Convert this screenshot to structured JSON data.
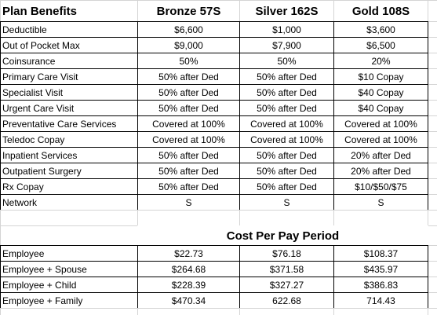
{
  "plan_table": {
    "headers": [
      "Plan Benefits",
      "Bronze 57S",
      "Silver 162S",
      "Gold 108S"
    ],
    "rows": [
      [
        "Deductible",
        "$6,600",
        "$1,000",
        "$3,600"
      ],
      [
        "Out of Pocket Max",
        "$9,000",
        "$7,900",
        "$6,500"
      ],
      [
        "Coinsurance",
        "50%",
        "50%",
        "20%"
      ],
      [
        "Primary Care Visit",
        "50% after Ded",
        "50% after Ded",
        "$10 Copay"
      ],
      [
        "Specialist Visit",
        "50% after Ded",
        "50% after Ded",
        "$40 Copay"
      ],
      [
        "Urgent Care Visit",
        "50% after Ded",
        "50% after Ded",
        "$40 Copay"
      ],
      [
        "Preventative Care Services",
        "Covered at 100%",
        "Covered at 100%",
        "Covered at 100%"
      ],
      [
        "Teledoc Copay",
        "Covered at 100%",
        "Covered at 100%",
        "Covered at 100%"
      ],
      [
        "Inpatient Services",
        "50% after Ded",
        "50% after Ded",
        "20% after Ded"
      ],
      [
        "Outpatient Surgery",
        "50% after Ded",
        "50% after Ded",
        "20% after Ded"
      ],
      [
        "Rx Copay",
        "50% after Ded",
        "50% after Ded",
        "$10/$50/$75"
      ],
      [
        "Network",
        "S",
        "S",
        "S"
      ]
    ]
  },
  "cost_table": {
    "title": "Cost Per Pay Period",
    "rows": [
      [
        "Employee",
        "$22.73",
        "$76.18",
        "$108.37"
      ],
      [
        "Employee + Spouse",
        "$264.68",
        "$371.58",
        "$435.97"
      ],
      [
        "Employee + Child",
        "$228.39",
        "$327.27",
        "$386.83"
      ],
      [
        "Employee + Family",
        "$470.34",
        "622.68",
        "714.43"
      ]
    ]
  }
}
